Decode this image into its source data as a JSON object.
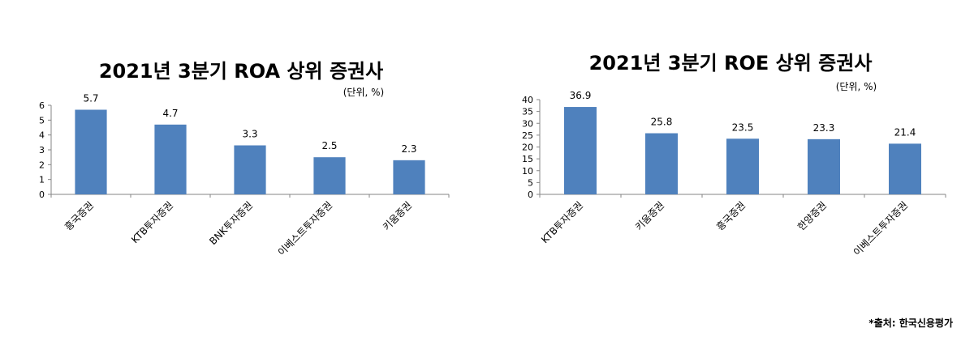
{
  "chart_data": [
    {
      "type": "bar",
      "title": "2021년 3분기 ROA 상위 증권사",
      "unit_note": "(단위, %)",
      "categories": [
        "흥국증권",
        "KTB투자증권",
        "BNK투자증권",
        "이베스트투자증권",
        "키움증권"
      ],
      "values": [
        5.7,
        4.7,
        3.3,
        2.5,
        2.3
      ],
      "value_labels": [
        "5.7",
        "4.7",
        "3.3",
        "2.5",
        "2.3"
      ],
      "ylim": [
        0,
        6
      ],
      "yticks": [
        "0",
        "1",
        "2",
        "3",
        "4",
        "5",
        "6"
      ],
      "bar_color": "#4f81bd",
      "grid": false,
      "legend": "none"
    },
    {
      "type": "bar",
      "title": "2021년 3분기 ROE 상위 증권사",
      "unit_note": "(단위, %)",
      "categories": [
        "KTB투자증권",
        "키움증권",
        "흥국증권",
        "한양증권",
        "이베스트투자증권"
      ],
      "values": [
        36.9,
        25.8,
        23.5,
        23.3,
        21.4
      ],
      "value_labels": [
        "36.9",
        "25.8",
        "23.5",
        "23.3",
        "21.4"
      ],
      "ylim": [
        0,
        40
      ],
      "yticks": [
        "0",
        "5",
        "10",
        "15",
        "20",
        "25",
        "30",
        "35",
        "40"
      ],
      "bar_color": "#4f81bd",
      "grid": false,
      "legend": "none"
    }
  ],
  "footer": {
    "source": "*출처: 한국신용평가"
  }
}
